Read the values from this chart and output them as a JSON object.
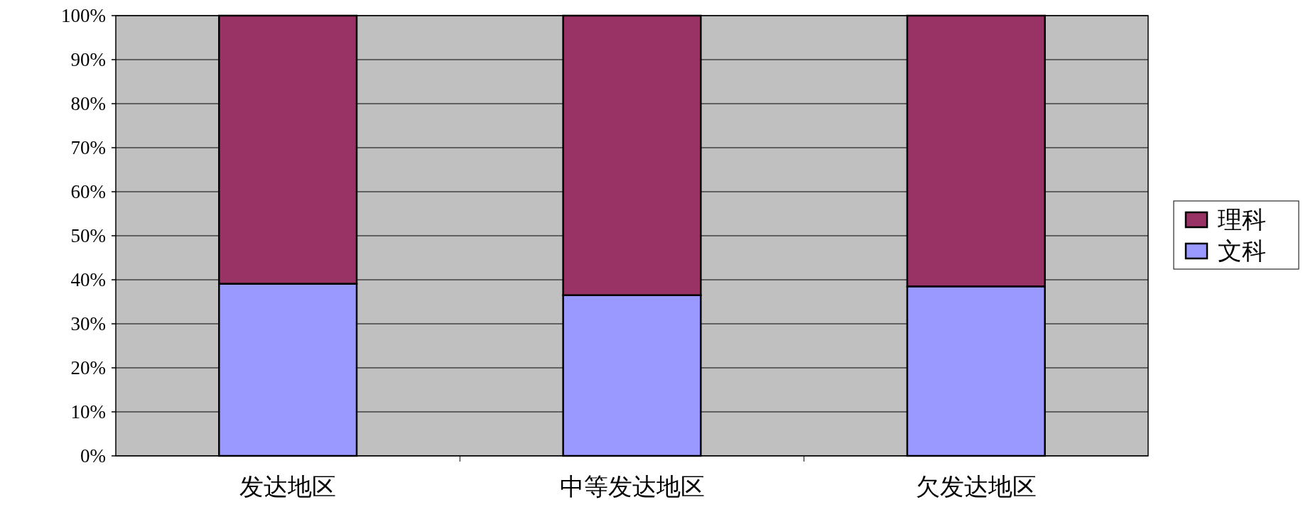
{
  "chart_data": {
    "type": "bar",
    "stacked": true,
    "categories": [
      "发达地区",
      "中等发达地区",
      "欠发达地区"
    ],
    "series": [
      {
        "name": "文科",
        "color": "#9999ff",
        "values": [
          39.1,
          36.5,
          38.5
        ]
      },
      {
        "name": "理科",
        "color": "#993366",
        "values": [
          60.9,
          63.5,
          61.5
        ]
      }
    ],
    "ylim": [
      0,
      100
    ],
    "yticks": [
      {
        "value": 0,
        "label": "0%"
      },
      {
        "value": 10,
        "label": "10%"
      },
      {
        "value": 20,
        "label": "20%"
      },
      {
        "value": 30,
        "label": "30%"
      },
      {
        "value": 40,
        "label": "40%"
      },
      {
        "value": 50,
        "label": "50%"
      },
      {
        "value": 60,
        "label": "60%"
      },
      {
        "value": 70,
        "label": "70%"
      },
      {
        "value": 80,
        "label": "80%"
      },
      {
        "value": 90,
        "label": "90%"
      },
      {
        "value": 100,
        "label": "100%"
      }
    ],
    "grid": "y",
    "legend": "right"
  }
}
